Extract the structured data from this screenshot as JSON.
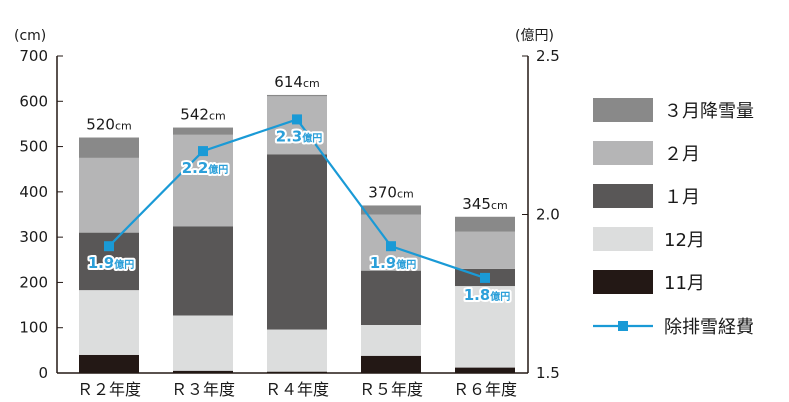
{
  "chart_data": {
    "type": "bar",
    "stacked": true,
    "categories": [
      "Ｒ２年度",
      "Ｒ３年度",
      "Ｒ４年度",
      "Ｒ５年度",
      "Ｒ６年度"
    ],
    "left_axis": {
      "unit": "(cm)",
      "ylim": [
        0,
        700
      ],
      "ticks": [
        "0",
        "100",
        "200",
        "300",
        "400",
        "500",
        "600",
        "700"
      ]
    },
    "right_axis": {
      "unit": "(億円)",
      "ylim": [
        1.5,
        2.5
      ],
      "ticks": [
        "1.5",
        "2.0",
        "2.5"
      ]
    },
    "totals": [
      "520",
      "542",
      "614",
      "370",
      "345"
    ],
    "total_unit": "cm",
    "series": [
      {
        "name": "11月",
        "color": "#231815",
        "values": [
          40,
          5,
          3,
          38,
          12
        ]
      },
      {
        "name": "12月",
        "color": "#dcdddd",
        "values": [
          143,
          122,
          93,
          68,
          180
        ]
      },
      {
        "name": "１月",
        "color": "#595757",
        "values": [
          127,
          197,
          387,
          120,
          38
        ]
      },
      {
        "name": "２月",
        "color": "#b5b5b6",
        "values": [
          165,
          202,
          128,
          124,
          82
        ]
      },
      {
        "name": "３月降雪量",
        "color": "#898989",
        "values": [
          45,
          16,
          3,
          20,
          33
        ]
      }
    ],
    "line_series": {
      "name": "除排雪経費",
      "color": "#1a9ad6",
      "values": [
        1.9,
        2.2,
        2.3,
        1.9,
        1.8
      ],
      "labels": [
        "1.9",
        "2.2",
        "2.3",
        "1.9",
        "1.8"
      ],
      "label_unit": "億円"
    },
    "legend_order": [
      "３月降雪量",
      "２月",
      "１月",
      "12月",
      "11月",
      "除排雪経費"
    ],
    "legend_position": "right"
  }
}
